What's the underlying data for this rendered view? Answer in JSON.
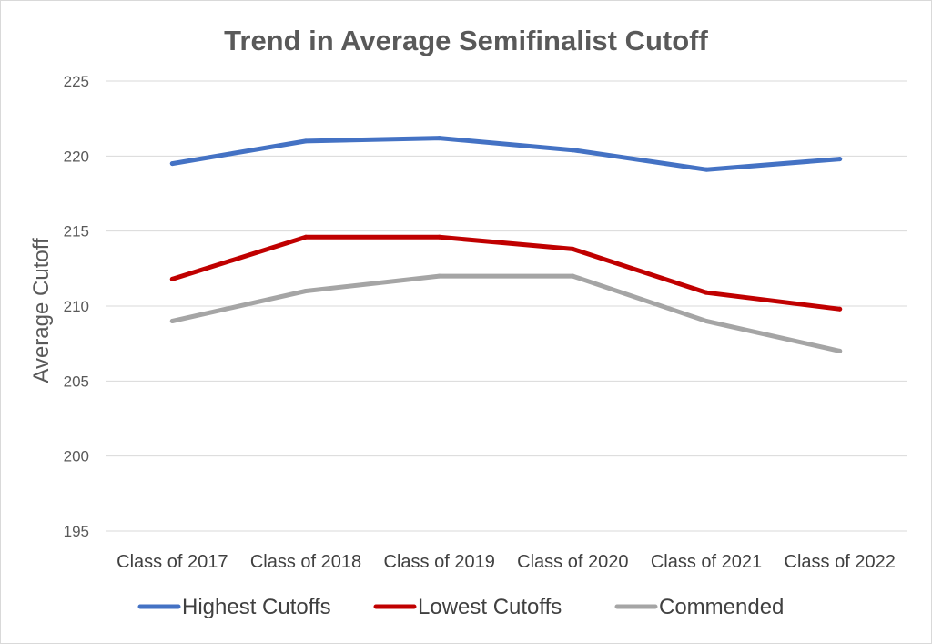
{
  "chart_data": {
    "type": "line",
    "title": "Trend in Average Semifinalist Cutoff",
    "ylabel": "Average Cutoff",
    "xlabel": "",
    "ylim": [
      195,
      225
    ],
    "yticks": [
      195,
      200,
      205,
      210,
      215,
      220,
      225
    ],
    "grid": true,
    "legend_position": "bottom",
    "categories": [
      "Class of 2017",
      "Class of 2018",
      "Class of 2019",
      "Class of 2020",
      "Class of 2021",
      "Class of 2022"
    ],
    "series": [
      {
        "name": "Highest Cutoffs",
        "color": "#4472C4",
        "values": [
          219.5,
          221.0,
          221.2,
          220.4,
          219.1,
          219.8
        ]
      },
      {
        "name": "Lowest Cutoffs",
        "color": "#C00000",
        "values": [
          211.8,
          214.6,
          214.6,
          213.8,
          210.9,
          209.8
        ]
      },
      {
        "name": "Commended",
        "color": "#A5A5A5",
        "values": [
          209.0,
          211.0,
          212.0,
          212.0,
          209.0,
          207.0
        ]
      }
    ]
  }
}
